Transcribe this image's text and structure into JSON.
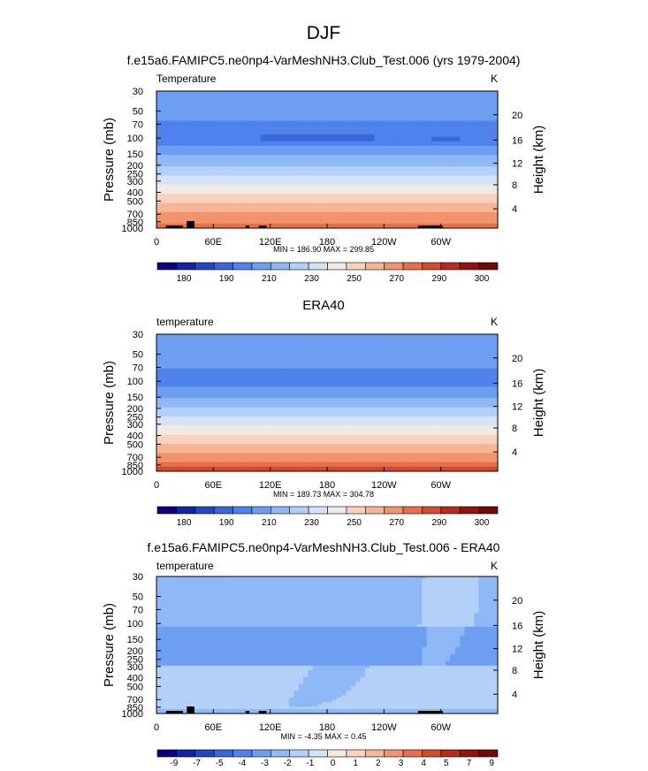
{
  "page": {
    "title": "DJF"
  },
  "colors": {
    "temp_levels": [
      "#0b007a",
      "#1424a8",
      "#2346c8",
      "#3a66dc",
      "#4f82ea",
      "#6c9ef2",
      "#8fb8f6",
      "#b3d0f8",
      "#d5e3f6",
      "#f4e9e4",
      "#f8d2bf",
      "#f6b596",
      "#f1946d",
      "#e6704b",
      "#d44a2d",
      "#b82a1a",
      "#93140e",
      "#6e0a08"
    ],
    "diff_levels": [
      "#0b007a",
      "#1424a8",
      "#2346c8",
      "#3a66dc",
      "#4f82ea",
      "#6c9ef2",
      "#8fb8f6",
      "#b3d0f8",
      "#d5e3f6",
      "#f4e9e4",
      "#f8d2bf",
      "#f6b596",
      "#f1946d",
      "#e6704b",
      "#d44a2d",
      "#b82a1a",
      "#93140e",
      "#6e0a08"
    ]
  },
  "chart_data": [
    {
      "type": "heatmap",
      "title": "f.e15a6.FAMIPC5.ne0np4-VarMeshNH3.Club_Test.006 (yrs 1979-2004)",
      "left_label": "Temperature",
      "right_label": "K",
      "ylabel": "Pressure (mb)",
      "ylabel_right": "Height (km)",
      "x_ticks": [
        "0",
        "60E",
        "120E",
        "180",
        "120W",
        "60W"
      ],
      "y_ticks": [
        "30",
        "50",
        "70",
        "100",
        "150",
        "200",
        "250",
        "300",
        "400",
        "500",
        "700",
        "850",
        "1000"
      ],
      "height_ticks": [
        "20",
        "16",
        "12",
        "8",
        "4"
      ],
      "stats": "MIN = 186.90  MAX = 299.85",
      "colorbar_labels": [
        "180",
        "190",
        "210",
        "230",
        "250",
        "270",
        "290",
        "300"
      ],
      "xlim": [
        0,
        360
      ],
      "ylim": [
        1000,
        30
      ],
      "log_y": true
    },
    {
      "type": "heatmap",
      "title": "ERA40",
      "left_label": "temperature",
      "right_label": "K",
      "ylabel": "Pressure (mb)",
      "ylabel_right": "Height (km)",
      "x_ticks": [
        "0",
        "60E",
        "120E",
        "180",
        "120W",
        "60W"
      ],
      "y_ticks": [
        "30",
        "50",
        "70",
        "100",
        "150",
        "200",
        "250",
        "300",
        "400",
        "500",
        "700",
        "850",
        "1000"
      ],
      "height_ticks": [
        "20",
        "16",
        "12",
        "8",
        "4"
      ],
      "stats": "MIN = 189.73  MAX = 304.78",
      "colorbar_labels": [
        "180",
        "190",
        "210",
        "230",
        "250",
        "270",
        "290",
        "300"
      ],
      "xlim": [
        0,
        360
      ],
      "ylim": [
        1000,
        30
      ],
      "log_y": true
    },
    {
      "type": "heatmap",
      "title": "f.e15a6.FAMIPC5.ne0np4-VarMeshNH3.Club_Test.006 - ERA40",
      "left_label": "temperature",
      "right_label": "K",
      "ylabel": "Pressure (mb)",
      "ylabel_right": "Height (km)",
      "x_ticks": [
        "0",
        "60E",
        "120E",
        "180",
        "120W",
        "60W"
      ],
      "y_ticks": [
        "30",
        "50",
        "70",
        "100",
        "150",
        "200",
        "250",
        "300",
        "400",
        "500",
        "700",
        "850",
        "1000"
      ],
      "height_ticks": [
        "20",
        "16",
        "12",
        "8",
        "4"
      ],
      "stats": "MIN = -4.35  MAX =  0.45",
      "colorbar_labels": [
        "-9",
        "-7",
        "-5",
        "-4",
        "-3",
        "-2",
        "-1",
        "0",
        "1",
        "2",
        "3",
        "4",
        "5",
        "7",
        "9"
      ],
      "xlim": [
        0,
        360
      ],
      "ylim": [
        1000,
        30
      ],
      "log_y": true
    }
  ]
}
